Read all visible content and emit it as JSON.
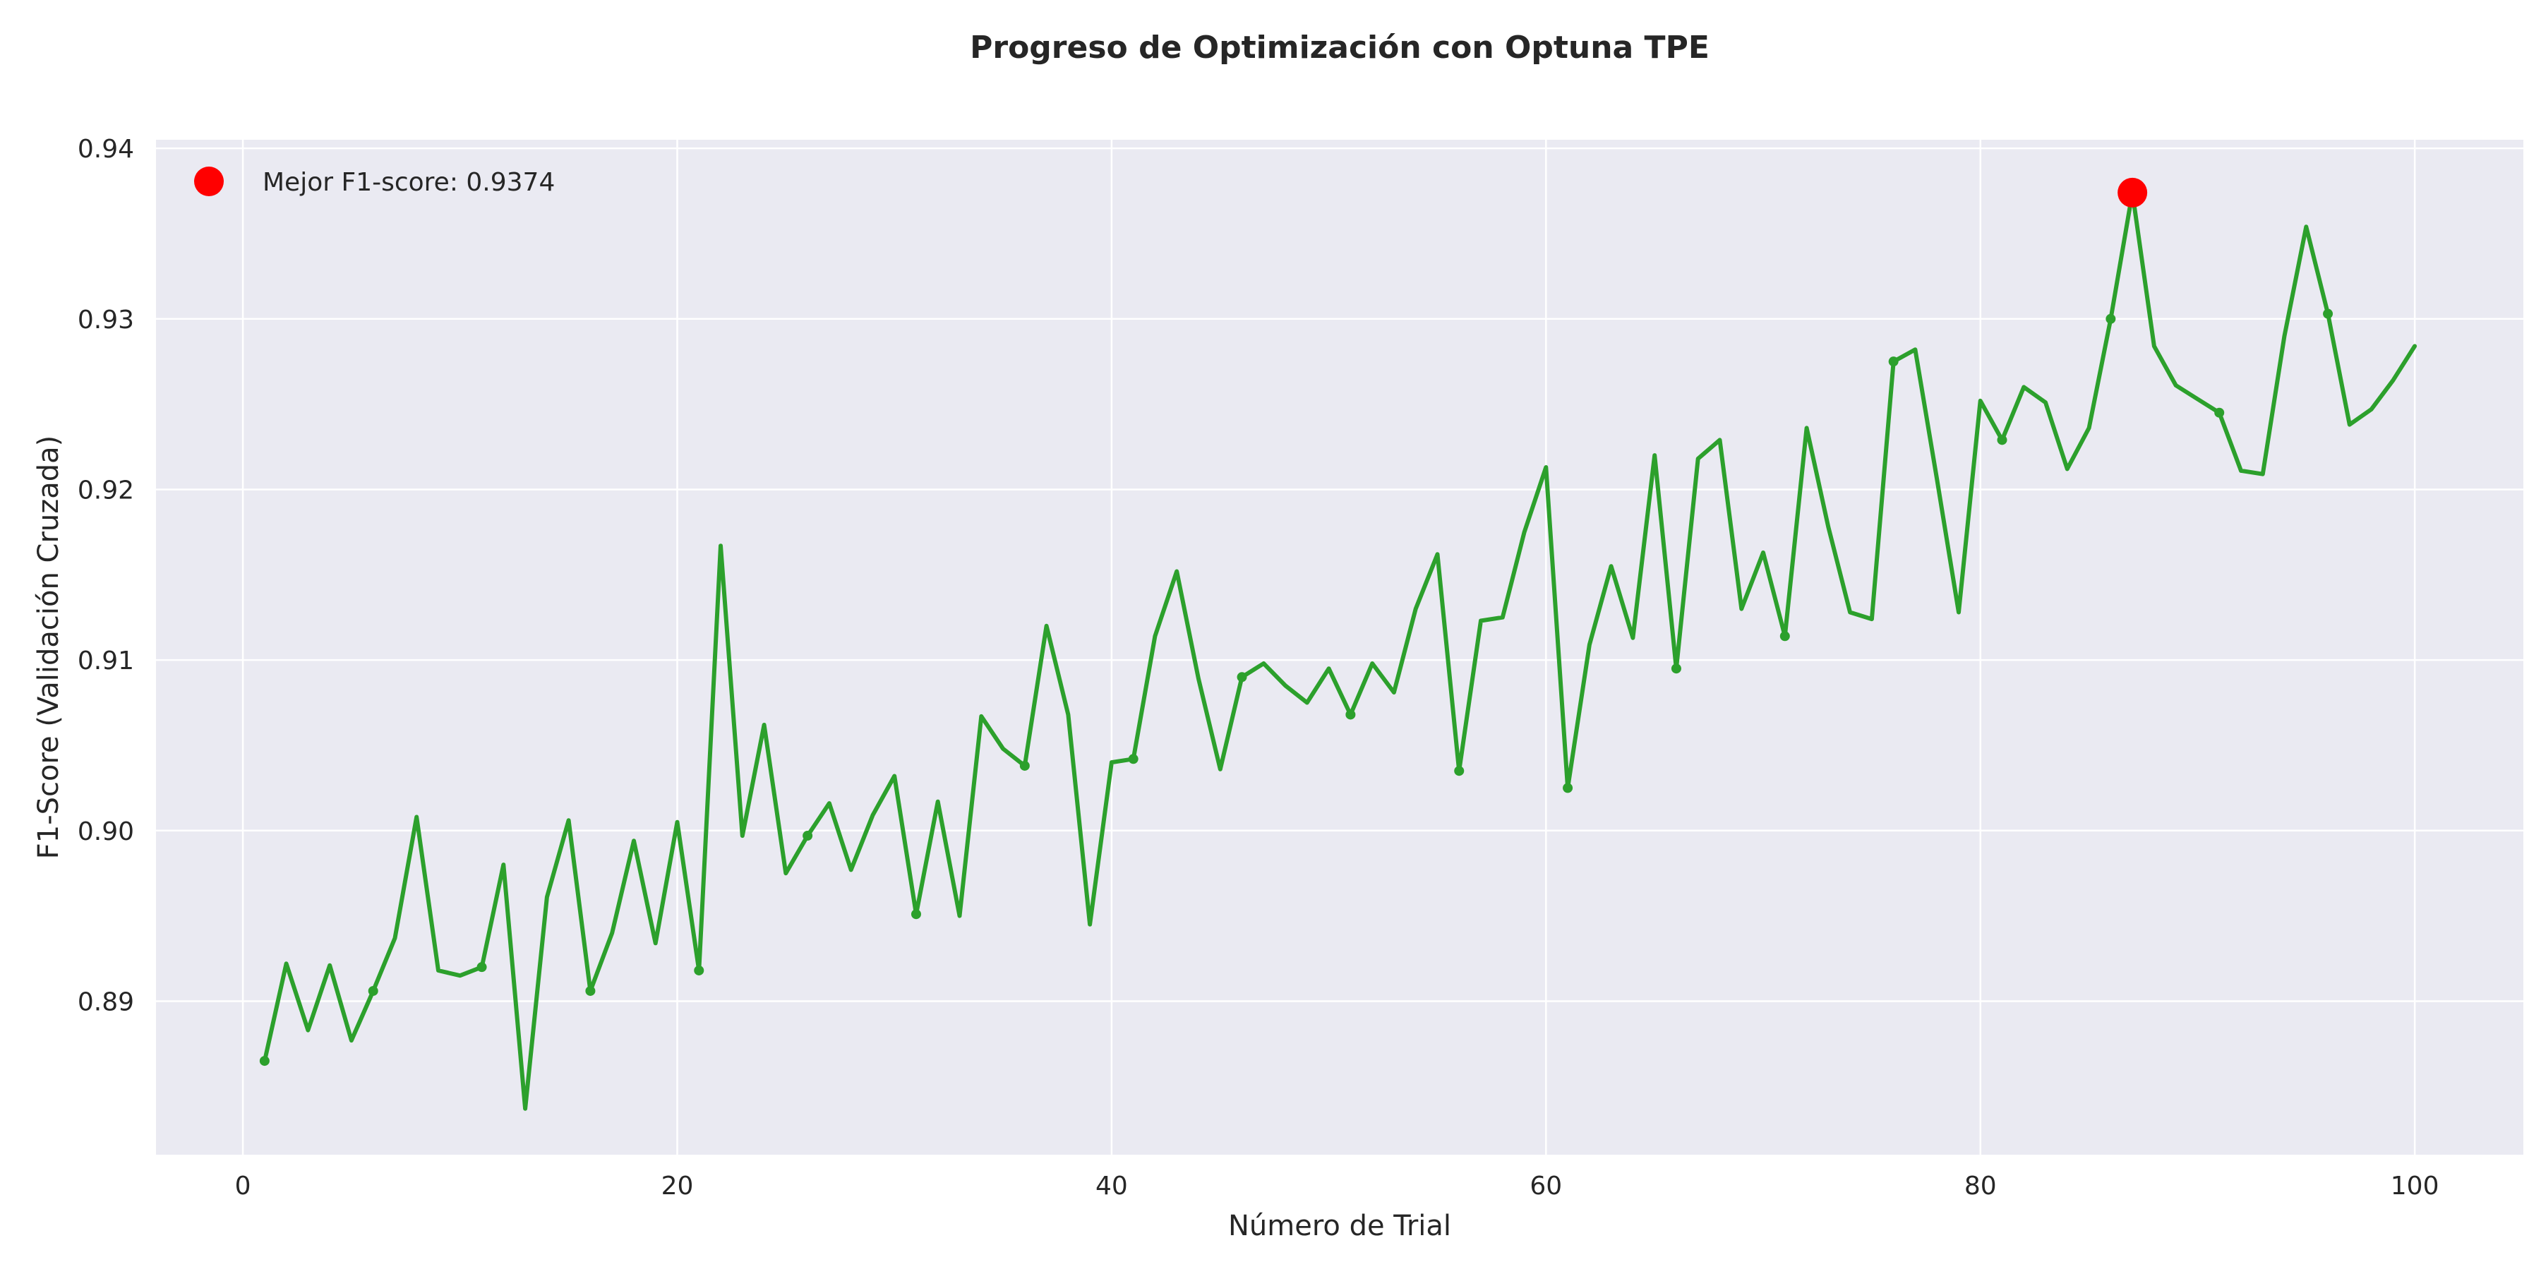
{
  "chart_data": {
    "type": "line",
    "title": "Progreso de Optimización con Optuna TPE",
    "xlabel": "Número de Trial",
    "ylabel": "F1-Score (Validación Cruzada)",
    "xlim": [
      -4,
      105
    ],
    "ylim": [
      0.881,
      0.9405
    ],
    "x_ticks": [
      0,
      20,
      40,
      60,
      80,
      100
    ],
    "y_ticks": [
      0.89,
      0.9,
      0.91,
      0.92,
      0.93,
      0.94
    ],
    "x_tick_labels": [
      "0",
      "20",
      "40",
      "60",
      "80",
      "100"
    ],
    "y_tick_labels": [
      "0.89",
      "0.90",
      "0.91",
      "0.92",
      "0.93",
      "0.94"
    ],
    "grid": true,
    "legend_position": "top-left",
    "line_color": "#2ca02c",
    "best_color": "#ff0000",
    "plot_background": "#eaeaf2",
    "series": [
      {
        "x": [
          1,
          2,
          3,
          4,
          5,
          6,
          7,
          8,
          9,
          10,
          11,
          12,
          13,
          14,
          15,
          16,
          17,
          18,
          19,
          20,
          21,
          22,
          23,
          24,
          25,
          26,
          27,
          28,
          29,
          30,
          31,
          32,
          33,
          34,
          35,
          36,
          37,
          38,
          39,
          40,
          41,
          42,
          43,
          44,
          45,
          46,
          47,
          48,
          49,
          50,
          51,
          52,
          53,
          54,
          55,
          56,
          57,
          58,
          59,
          60,
          61,
          62,
          63,
          64,
          65,
          66,
          67,
          68,
          69,
          70,
          71,
          72,
          73,
          74,
          75,
          76,
          77,
          78,
          79,
          80,
          81,
          82,
          83,
          84,
          85,
          86,
          87,
          88,
          89,
          90,
          91,
          92,
          93,
          94,
          95,
          96,
          97,
          98,
          99,
          100
        ],
        "values": [
          0.8865,
          0.8922,
          0.8883,
          0.8921,
          0.8877,
          0.8906,
          0.8937,
          0.9008,
          0.8918,
          0.8915,
          0.892,
          0.898,
          0.8837,
          0.8961,
          0.9006,
          0.8906,
          0.894,
          0.8994,
          0.8934,
          0.9005,
          0.8918,
          0.9167,
          0.8997,
          0.9062,
          0.8975,
          0.8997,
          0.9016,
          0.8977,
          0.9009,
          0.9032,
          0.8951,
          0.9017,
          0.895,
          0.9067,
          0.9048,
          0.9038,
          0.912,
          0.9068,
          0.8945,
          0.904,
          0.9042,
          0.9114,
          0.9152,
          0.9089,
          0.9036,
          0.909,
          0.9098,
          0.9085,
          0.9075,
          0.9095,
          0.9068,
          0.9098,
          0.9081,
          0.913,
          0.9162,
          0.9035,
          0.9123,
          0.9125,
          0.9175,
          0.9213,
          0.9025,
          0.9109,
          0.9155,
          0.9113,
          0.922,
          0.9095,
          0.9218,
          0.9229,
          0.913,
          0.9163,
          0.9114,
          0.9236,
          0.9178,
          0.9128,
          0.9124,
          0.9275,
          0.9282,
          0.9206,
          0.9128,
          0.9252,
          0.9229,
          0.926,
          0.9251,
          0.9212,
          0.9236,
          0.93,
          0.9374,
          0.9284,
          0.9261,
          0.9253,
          0.9245,
          0.9211,
          0.9209,
          0.929,
          0.9354,
          0.9303,
          0.9238,
          0.9247,
          0.9264,
          0.9284
        ],
        "marker_x": [
          1,
          6,
          11,
          16,
          21,
          26,
          31,
          36,
          41,
          46,
          51,
          56,
          61,
          66,
          71,
          76,
          81,
          86,
          91,
          96
        ]
      }
    ],
    "best": {
      "x": 87,
      "value": 0.9374,
      "legend_label": "Mejor F1-score: 0.9374"
    }
  }
}
